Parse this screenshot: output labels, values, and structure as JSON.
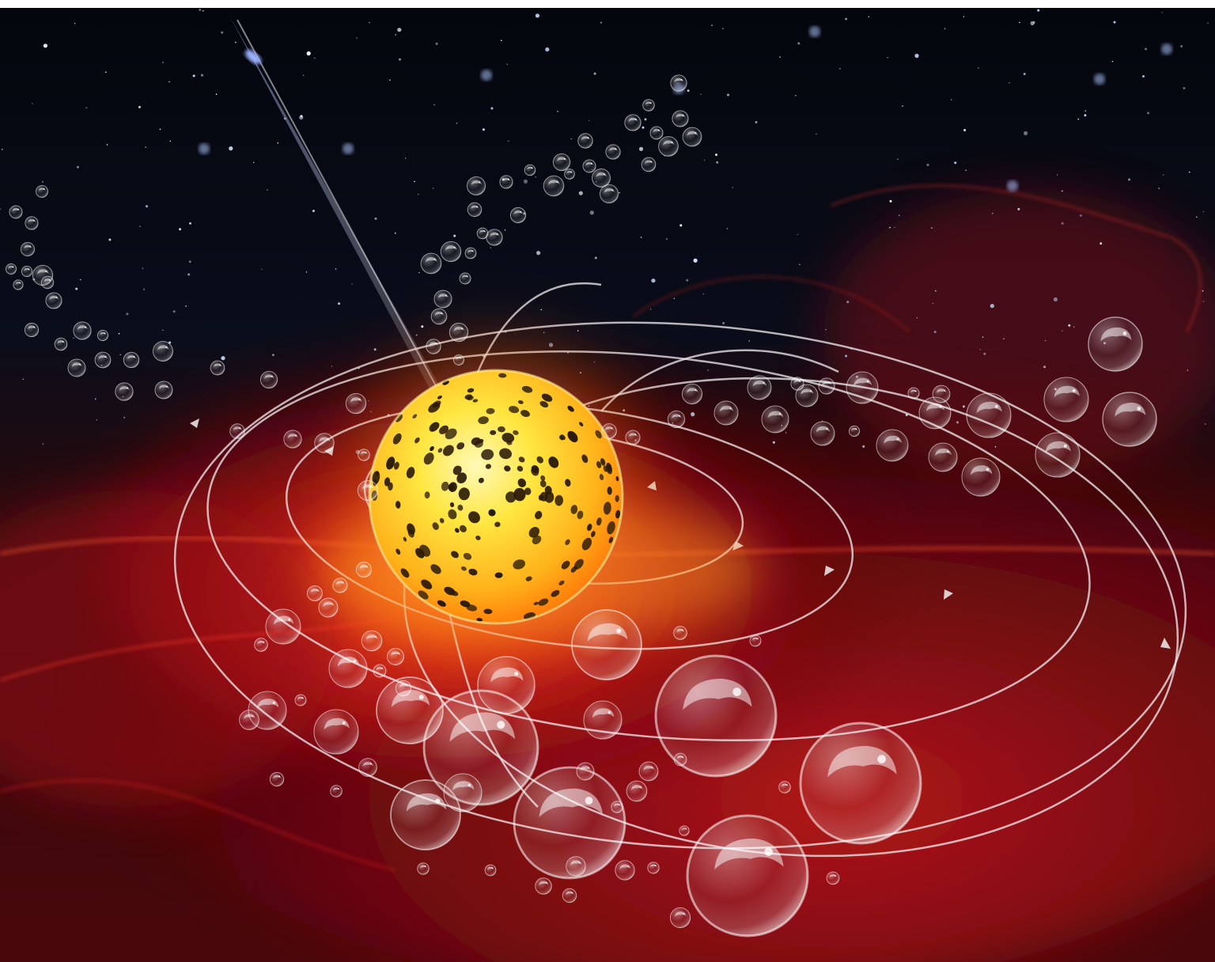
{
  "scene": {
    "subject": "spotted-star-with-orbiting-bubbles",
    "palette": {
      "space": "#05070f",
      "nebula_red": "#c0121a",
      "nebula_orange": "#ff6a10",
      "star_yellow": "#ffe14a",
      "star_core": "#fff6a8",
      "star_spots": "#2a1a08",
      "orbit_line": "#f2eef0",
      "bubble_rim": "#ffffff",
      "jet": "#b8c8ff"
    },
    "elements": [
      "starfield",
      "red-nebula",
      "glowing-yellow-star",
      "dark-spots",
      "polar-jet",
      "elliptical-orbits",
      "orbit-arrows",
      "transparent-bubbles"
    ]
  }
}
